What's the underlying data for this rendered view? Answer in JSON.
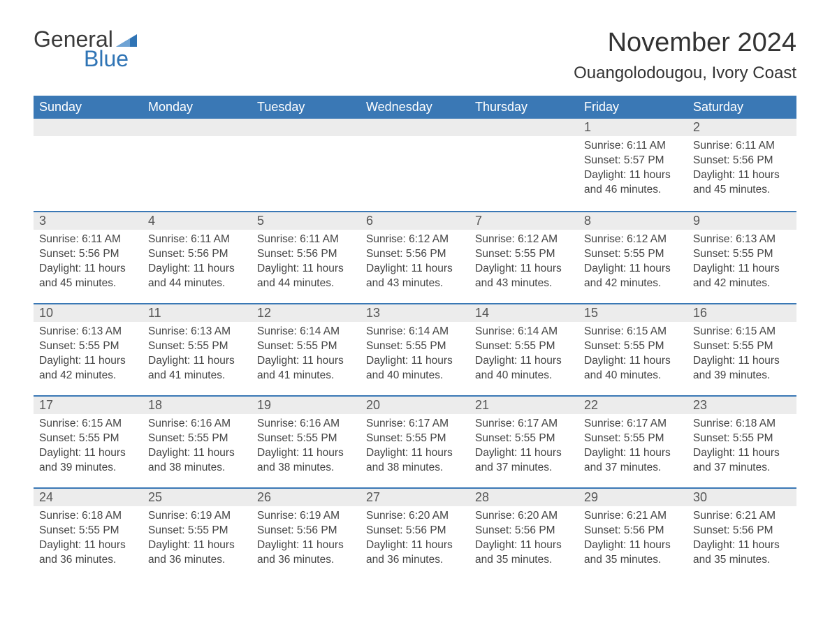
{
  "logo": {
    "word1": "General",
    "word2": "Blue",
    "general_color": "#3a3a3a",
    "blue_color": "#2f74b5",
    "flag_color": "#2f74b5"
  },
  "title": "November 2024",
  "location": "Ouangolodougou, Ivory Coast",
  "colors": {
    "header_bg": "#3a78b5",
    "header_text": "#ffffff",
    "daynum_bg": "#ececec",
    "daynum_border": "#3a78b5",
    "body_text": "#444444",
    "page_bg": "#ffffff"
  },
  "day_headers": [
    "Sunday",
    "Monday",
    "Tuesday",
    "Wednesday",
    "Thursday",
    "Friday",
    "Saturday"
  ],
  "labels": {
    "sunrise": "Sunrise: ",
    "sunset": "Sunset: ",
    "daylight": "Daylight: "
  },
  "weeks": [
    [
      null,
      null,
      null,
      null,
      null,
      {
        "n": "1",
        "sr": "6:11 AM",
        "ss": "5:57 PM",
        "dl": "11 hours and 46 minutes."
      },
      {
        "n": "2",
        "sr": "6:11 AM",
        "ss": "5:56 PM",
        "dl": "11 hours and 45 minutes."
      }
    ],
    [
      {
        "n": "3",
        "sr": "6:11 AM",
        "ss": "5:56 PM",
        "dl": "11 hours and 45 minutes."
      },
      {
        "n": "4",
        "sr": "6:11 AM",
        "ss": "5:56 PM",
        "dl": "11 hours and 44 minutes."
      },
      {
        "n": "5",
        "sr": "6:11 AM",
        "ss": "5:56 PM",
        "dl": "11 hours and 44 minutes."
      },
      {
        "n": "6",
        "sr": "6:12 AM",
        "ss": "5:56 PM",
        "dl": "11 hours and 43 minutes."
      },
      {
        "n": "7",
        "sr": "6:12 AM",
        "ss": "5:55 PM",
        "dl": "11 hours and 43 minutes."
      },
      {
        "n": "8",
        "sr": "6:12 AM",
        "ss": "5:55 PM",
        "dl": "11 hours and 42 minutes."
      },
      {
        "n": "9",
        "sr": "6:13 AM",
        "ss": "5:55 PM",
        "dl": "11 hours and 42 minutes."
      }
    ],
    [
      {
        "n": "10",
        "sr": "6:13 AM",
        "ss": "5:55 PM",
        "dl": "11 hours and 42 minutes."
      },
      {
        "n": "11",
        "sr": "6:13 AM",
        "ss": "5:55 PM",
        "dl": "11 hours and 41 minutes."
      },
      {
        "n": "12",
        "sr": "6:14 AM",
        "ss": "5:55 PM",
        "dl": "11 hours and 41 minutes."
      },
      {
        "n": "13",
        "sr": "6:14 AM",
        "ss": "5:55 PM",
        "dl": "11 hours and 40 minutes."
      },
      {
        "n": "14",
        "sr": "6:14 AM",
        "ss": "5:55 PM",
        "dl": "11 hours and 40 minutes."
      },
      {
        "n": "15",
        "sr": "6:15 AM",
        "ss": "5:55 PM",
        "dl": "11 hours and 40 minutes."
      },
      {
        "n": "16",
        "sr": "6:15 AM",
        "ss": "5:55 PM",
        "dl": "11 hours and 39 minutes."
      }
    ],
    [
      {
        "n": "17",
        "sr": "6:15 AM",
        "ss": "5:55 PM",
        "dl": "11 hours and 39 minutes."
      },
      {
        "n": "18",
        "sr": "6:16 AM",
        "ss": "5:55 PM",
        "dl": "11 hours and 38 minutes."
      },
      {
        "n": "19",
        "sr": "6:16 AM",
        "ss": "5:55 PM",
        "dl": "11 hours and 38 minutes."
      },
      {
        "n": "20",
        "sr": "6:17 AM",
        "ss": "5:55 PM",
        "dl": "11 hours and 38 minutes."
      },
      {
        "n": "21",
        "sr": "6:17 AM",
        "ss": "5:55 PM",
        "dl": "11 hours and 37 minutes."
      },
      {
        "n": "22",
        "sr": "6:17 AM",
        "ss": "5:55 PM",
        "dl": "11 hours and 37 minutes."
      },
      {
        "n": "23",
        "sr": "6:18 AM",
        "ss": "5:55 PM",
        "dl": "11 hours and 37 minutes."
      }
    ],
    [
      {
        "n": "24",
        "sr": "6:18 AM",
        "ss": "5:55 PM",
        "dl": "11 hours and 36 minutes."
      },
      {
        "n": "25",
        "sr": "6:19 AM",
        "ss": "5:55 PM",
        "dl": "11 hours and 36 minutes."
      },
      {
        "n": "26",
        "sr": "6:19 AM",
        "ss": "5:56 PM",
        "dl": "11 hours and 36 minutes."
      },
      {
        "n": "27",
        "sr": "6:20 AM",
        "ss": "5:56 PM",
        "dl": "11 hours and 36 minutes."
      },
      {
        "n": "28",
        "sr": "6:20 AM",
        "ss": "5:56 PM",
        "dl": "11 hours and 35 minutes."
      },
      {
        "n": "29",
        "sr": "6:21 AM",
        "ss": "5:56 PM",
        "dl": "11 hours and 35 minutes."
      },
      {
        "n": "30",
        "sr": "6:21 AM",
        "ss": "5:56 PM",
        "dl": "11 hours and 35 minutes."
      }
    ]
  ]
}
